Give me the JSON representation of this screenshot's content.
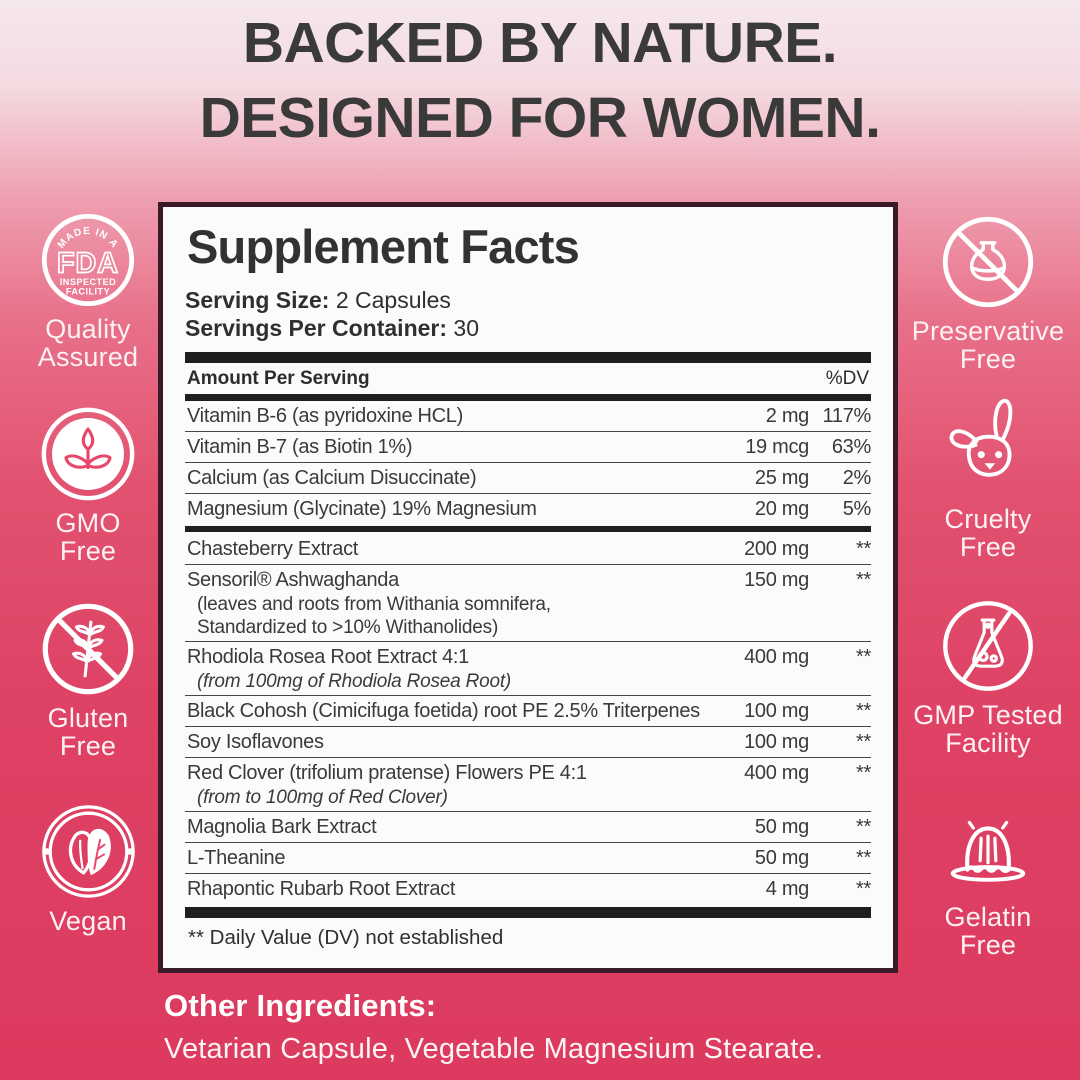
{
  "header": {
    "line1": "BACKED BY NATURE.",
    "line2": "DESIGNED FOR WOMEN."
  },
  "panel": {
    "title": "Supplement Facts",
    "serving_size_label": "Serving Size:",
    "serving_size_value": "2 Capsules",
    "servings_per_container_label": "Servings Per Container:",
    "servings_per_container_value": "30",
    "amount_header": "Amount Per Serving",
    "dv_header": "%DV",
    "rows": [
      {
        "name": "Vitamin B-6 (as pyridoxine HCL)",
        "amount": "2 mg",
        "dv": "117%"
      },
      {
        "name": "Vitamin B-7 (as Biotin 1%)",
        "amount": "19 mcg",
        "dv": "63%"
      },
      {
        "name": "Calcium (as Calcium Disuccinate)",
        "amount": "25 mg",
        "dv": "2%"
      },
      {
        "name": "Magnesium (Glycinate) 19% Magnesium",
        "amount": "20 mg",
        "dv": "5%",
        "bar_after": true
      },
      {
        "name": "Chasteberry Extract",
        "amount": "200 mg",
        "dv": "**"
      },
      {
        "name": "Sensoril® Ashwaghanda",
        "amount": "150 mg",
        "dv": "**",
        "subs": [
          {
            "text": "(leaves and roots from Withania somnifera,",
            "italic": false
          },
          {
            "text": "Standardized to >10% Withanolides)",
            "italic": false
          }
        ]
      },
      {
        "name": "Rhodiola Rosea Root Extract 4:1",
        "amount": "400 mg",
        "dv": "**",
        "subs": [
          {
            "text": "(from 100mg of Rhodiola Rosea Root)",
            "italic": true
          }
        ]
      },
      {
        "name": "Black Cohosh (Cimicifuga foetida) root PE 2.5% Triterpenes",
        "amount": "100 mg",
        "dv": "**"
      },
      {
        "name": "Soy Isoflavones",
        "amount": "100 mg",
        "dv": "**"
      },
      {
        "name": "Red Clover (trifolium pratense) Flowers PE 4:1",
        "amount": "400 mg",
        "dv": "**",
        "subs": [
          {
            "text": "(from to 100mg of Red Clover)",
            "italic": true
          }
        ]
      },
      {
        "name": "Magnolia Bark Extract",
        "amount": "50 mg",
        "dv": "**"
      },
      {
        "name": "L-Theanine",
        "amount": "50 mg",
        "dv": "**"
      },
      {
        "name": "Rhapontic Rubarb Root Extract",
        "amount": "4 mg",
        "dv": "**"
      }
    ],
    "footnote": "** Daily Value (DV) not established"
  },
  "badges": {
    "left": [
      {
        "icon": "fda-seal-icon",
        "seal_top": "MADE IN A",
        "seal_main": "FDA",
        "seal_line1": "INSPECTED",
        "seal_line2": "FACILITY",
        "label": "Quality\nAssured"
      },
      {
        "icon": "gmo-free-icon",
        "label": "GMO\nFree"
      },
      {
        "icon": "gluten-free-icon",
        "label": "Gluten\nFree"
      },
      {
        "icon": "vegan-icon",
        "label": "Vegan"
      }
    ],
    "right": [
      {
        "icon": "preservative-free-icon",
        "label": "Preservative\nFree"
      },
      {
        "icon": "cruelty-free-icon",
        "label": "Cruelty\nFree"
      },
      {
        "icon": "gmp-tested-icon",
        "label": "GMP Tested\nFacility"
      },
      {
        "icon": "gelatin-free-icon",
        "label": "Gelatin\nFree"
      }
    ]
  },
  "other_ingredients": {
    "heading": "Other Ingredients:",
    "body": "Vetarian Capsule, Vegetable Magnesium Stearate."
  },
  "colors": {
    "background_top": "#f5e7ea",
    "background_bottom": "#dc3a5e",
    "accent_pink": "#e8476b",
    "panel_border": "#381b26",
    "panel_background": "#fcfbfb",
    "bar_black": "#1f1f1f",
    "text_dark": "#3a3a3a",
    "badge_text": "#ffffff"
  }
}
